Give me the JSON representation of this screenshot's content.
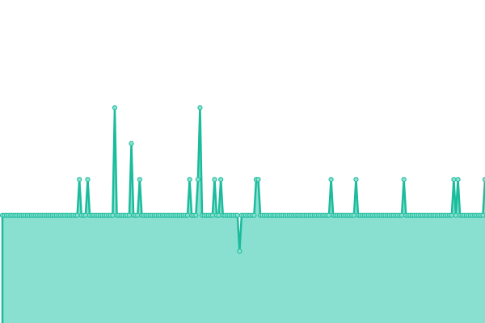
{
  "chart_data": {
    "type": "area",
    "title": "",
    "xlabel": "",
    "ylabel": "",
    "grid": false,
    "legend": "none",
    "ylim": [
      -3,
      6
    ],
    "x": [
      0,
      1,
      2,
      3,
      4,
      5,
      6,
      7,
      8,
      9,
      10,
      11,
      12,
      13,
      14,
      15,
      16,
      17,
      18,
      19,
      20,
      21,
      22,
      23,
      24,
      25,
      26,
      27,
      28,
      29,
      30,
      31,
      32,
      33,
      34,
      35,
      36,
      37,
      38,
      39,
      40,
      41,
      42,
      43,
      44,
      45,
      46,
      47,
      48,
      49,
      50,
      51,
      52,
      53,
      54,
      55,
      56,
      57,
      58,
      59,
      60,
      61,
      62,
      63,
      64,
      65,
      66,
      67,
      68,
      69,
      70,
      71,
      72,
      73,
      74,
      75,
      76,
      77,
      78,
      79,
      80,
      81,
      82,
      83,
      84,
      85,
      86,
      87,
      88,
      89,
      90,
      91,
      92,
      93,
      94,
      95,
      96,
      97,
      98,
      99,
      100,
      101,
      102,
      103,
      104,
      105,
      106,
      107,
      108,
      109,
      110,
      111,
      112,
      113,
      114,
      115,
      116,
      117,
      118,
      119,
      120,
      121,
      122,
      123,
      124,
      125,
      126,
      127,
      128,
      129,
      130,
      131,
      132,
      133,
      134,
      135,
      136,
      137,
      138,
      139,
      140,
      141,
      142,
      143,
      144,
      145,
      146,
      147,
      148,
      149,
      150,
      151,
      152,
      153,
      154,
      155,
      156,
      157,
      158,
      159,
      160,
      161,
      162,
      163,
      164,
      165,
      166,
      167,
      168,
      169,
      170,
      171,
      172,
      173,
      174,
      175,
      176,
      177,
      178,
      179,
      180,
      181,
      182,
      183,
      184,
      185,
      186,
      187,
      188,
      189,
      190,
      191,
      192,
      193,
      194,
      195,
      196,
      197,
      198,
      199,
      200,
      201,
      202,
      203,
      204,
      205,
      206,
      207,
      208,
      209,
      210,
      211,
      212,
      213,
      214,
      215,
      216,
      217,
      218,
      219,
      220,
      221,
      222,
      223,
      224,
      225,
      226,
      227,
      228,
      229,
      230,
      231,
      232
    ],
    "series": [
      {
        "values": [
          0,
          0,
          0,
          0,
          0,
          0,
          0,
          0,
          0,
          0,
          0,
          0,
          0,
          0,
          0,
          0,
          0,
          0,
          0,
          0,
          0,
          0,
          0,
          0,
          0,
          0,
          0,
          0,
          0,
          0,
          0,
          0,
          0,
          0,
          0,
          0,
          0,
          1,
          0,
          0,
          0,
          1,
          0,
          0,
          0,
          0,
          0,
          0,
          0,
          0,
          0,
          0,
          0,
          0,
          3,
          0,
          0,
          0,
          0,
          0,
          0,
          0,
          2,
          0,
          0,
          0,
          1,
          0,
          0,
          0,
          0,
          0,
          0,
          0,
          0,
          0,
          0,
          0,
          0,
          0,
          0,
          0,
          0,
          0,
          0,
          0,
          0,
          0,
          0,
          0,
          1,
          0,
          0,
          0,
          1,
          3,
          0,
          0,
          0,
          0,
          0,
          0,
          1,
          0,
          0,
          1,
          0,
          0,
          0,
          0,
          0,
          0,
          0,
          0,
          -1,
          0,
          0,
          0,
          0,
          0,
          0,
          0,
          1,
          1,
          0,
          0,
          0,
          0,
          0,
          0,
          0,
          0,
          0,
          0,
          0,
          0,
          0,
          0,
          0,
          0,
          0,
          0,
          0,
          0,
          0,
          0,
          0,
          0,
          0,
          0,
          0,
          0,
          0,
          0,
          0,
          0,
          0,
          0,
          1,
          0,
          0,
          0,
          0,
          0,
          0,
          0,
          0,
          0,
          0,
          0,
          1,
          0,
          0,
          0,
          0,
          0,
          0,
          0,
          0,
          0,
          0,
          0,
          0,
          0,
          0,
          0,
          0,
          0,
          0,
          0,
          0,
          0,
          0,
          1,
          0,
          0,
          0,
          0,
          0,
          0,
          0,
          0,
          0,
          0,
          0,
          0,
          0,
          0,
          0,
          0,
          0,
          0,
          0,
          0,
          0,
          0,
          0,
          1,
          0,
          1,
          0,
          0,
          0,
          0,
          0,
          0,
          0,
          0,
          0,
          0,
          0,
          0,
          1
        ]
      }
    ],
    "colors": {
      "line": "#1abc9c",
      "fill": "#8ae0d0",
      "marker_fill": "#8ae0d0"
    }
  }
}
